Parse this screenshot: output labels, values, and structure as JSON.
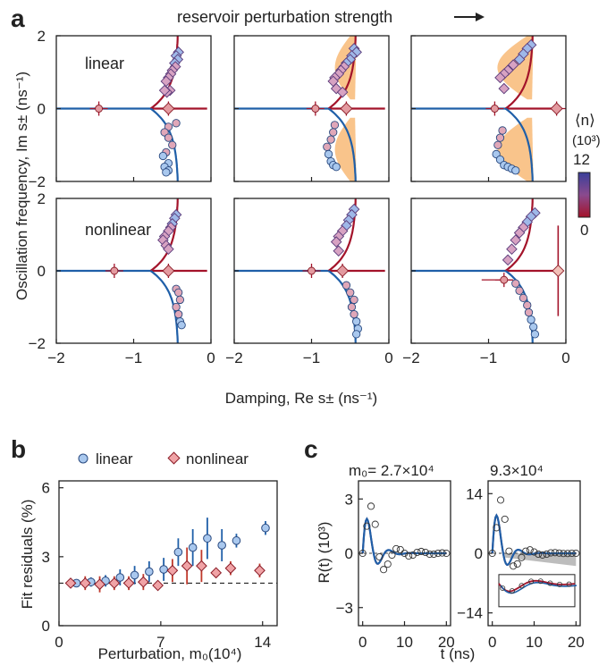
{
  "figure": {
    "panel_letters": [
      "a",
      "b",
      "c"
    ],
    "arrow_label": "reservoir perturbation strength",
    "row_labels": [
      "linear",
      "nonlinear"
    ],
    "colorbar": {
      "title": "⟨n⟩",
      "unit": "(10³)",
      "max_label": "12",
      "min_label": "0",
      "color_high": "#3a3f9a",
      "color_low": "#a3132a"
    },
    "colors": {
      "mode_plus": "#a3132a",
      "mode_minus": "#1f5fa8",
      "shade": "#f9c48b",
      "linear_marker": "#a9c8ee",
      "nonlinear_marker": "#f0a3a6",
      "gray_band": "#bdbdbd"
    }
  },
  "chart_data": [
    {
      "panel": "a",
      "type": "scatter",
      "xlabel": "Damping, Re s±  (ns⁻¹)",
      "ylabel": "Oscillation frequency, Im s±  (ns⁻¹)",
      "xlim": [
        -2,
        0
      ],
      "ylim": [
        -2,
        2
      ],
      "xticks": [
        "−2",
        "−1",
        "0"
      ],
      "yticks": [
        "2",
        "0",
        "−2"
      ],
      "subpanels": [
        {
          "row": "linear",
          "col": 1,
          "x_curve": [
            [
              -0.78,
              0
            ],
            [
              -0.7,
              0.45
            ],
            [
              -0.55,
              0.9
            ],
            [
              -0.45,
              1.4
            ],
            [
              -0.43,
              2.0
            ]
          ],
          "shade": false,
          "points_upper": [
            [
              -0.42,
              1.55
            ],
            [
              -0.45,
              1.45
            ],
            [
              -0.43,
              1.35
            ],
            [
              -0.47,
              1.25
            ],
            [
              -0.46,
              1.15
            ],
            [
              -0.5,
              1.05
            ],
            [
              -0.52,
              0.95
            ],
            [
              -0.55,
              0.85
            ],
            [
              -0.58,
              0.75
            ],
            [
              -0.53,
              0.5
            ],
            [
              -0.57,
              0.45
            ],
            [
              -0.6,
              0.5
            ]
          ],
          "points_lower": [
            [
              -0.45,
              -0.4
            ],
            [
              -0.55,
              -0.5
            ],
            [
              -0.6,
              -0.65
            ],
            [
              -0.55,
              -0.8
            ],
            [
              -0.5,
              -1.0
            ],
            [
              -0.58,
              -1.2
            ],
            [
              -0.62,
              -1.3
            ],
            [
              -0.55,
              -1.5
            ],
            [
              -0.6,
              -1.6
            ],
            [
              -0.55,
              -1.7
            ],
            [
              -0.58,
              -1.75
            ]
          ],
          "real_points": [
            [
              -1.45,
              0
            ],
            [
              -0.55,
              0
            ]
          ]
        },
        {
          "row": "linear",
          "col": 2,
          "shade": true,
          "points_upper": [
            [
              -0.45,
              1.65
            ],
            [
              -0.42,
              1.55
            ],
            [
              -0.48,
              1.45
            ],
            [
              -0.5,
              1.35
            ],
            [
              -0.55,
              1.25
            ],
            [
              -0.58,
              1.15
            ],
            [
              -0.62,
              1.05
            ],
            [
              -0.65,
              0.95
            ],
            [
              -0.7,
              0.85
            ],
            [
              -0.72,
              0.75
            ],
            [
              -0.68,
              0.55
            ],
            [
              -0.6,
              0.45
            ]
          ],
          "points_lower": [
            [
              -0.7,
              -0.45
            ],
            [
              -0.72,
              -0.65
            ],
            [
              -0.75,
              -0.85
            ],
            [
              -0.8,
              -1.05
            ],
            [
              -0.78,
              -1.25
            ],
            [
              -0.75,
              -1.45
            ],
            [
              -0.72,
              -1.55
            ],
            [
              -0.68,
              -1.6
            ]
          ],
          "real_points": [
            [
              -0.95,
              0
            ],
            [
              -0.55,
              0
            ]
          ]
        },
        {
          "row": "linear",
          "col": 3,
          "shade": true,
          "points_upper": [
            [
              -0.45,
              1.75
            ],
            [
              -0.5,
              1.65
            ],
            [
              -0.55,
              1.5
            ],
            [
              -0.6,
              1.35
            ],
            [
              -0.68,
              1.2
            ],
            [
              -0.75,
              1.05
            ],
            [
              -0.8,
              0.95
            ],
            [
              -0.85,
              0.85
            ],
            [
              -0.8,
              0.55
            ]
          ],
          "points_lower": [
            [
              -0.82,
              -0.6
            ],
            [
              -0.85,
              -0.8
            ],
            [
              -0.88,
              -1.0
            ],
            [
              -0.9,
              -1.25
            ],
            [
              -0.85,
              -1.4
            ],
            [
              -0.8,
              -1.55
            ],
            [
              -0.75,
              -1.6
            ],
            [
              -0.7,
              -1.65
            ],
            [
              -0.65,
              -1.7
            ]
          ],
          "real_points": [
            [
              -0.92,
              0
            ],
            [
              -0.12,
              0
            ]
          ]
        },
        {
          "row": "nonlinear",
          "col": 1,
          "shade": false,
          "points_upper": [
            [
              -0.45,
              1.55
            ],
            [
              -0.47,
              1.45
            ],
            [
              -0.5,
              1.3
            ],
            [
              -0.52,
              1.2
            ],
            [
              -0.55,
              1.1
            ],
            [
              -0.6,
              0.95
            ],
            [
              -0.62,
              0.85
            ],
            [
              -0.58,
              0.7
            ],
            [
              -0.55,
              0.6
            ]
          ],
          "points_lower": [
            [
              -0.45,
              -0.5
            ],
            [
              -0.42,
              -0.6
            ],
            [
              -0.4,
              -0.8
            ],
            [
              -0.45,
              -1.0
            ],
            [
              -0.42,
              -1.2
            ],
            [
              -0.4,
              -1.4
            ],
            [
              -0.38,
              -1.5
            ]
          ],
          "real_points": [
            [
              -1.25,
              0
            ],
            [
              -0.55,
              0
            ]
          ]
        },
        {
          "row": "nonlinear",
          "col": 2,
          "shade": false,
          "points_upper": [
            [
              -0.45,
              1.7
            ],
            [
              -0.48,
              1.55
            ],
            [
              -0.52,
              1.4
            ],
            [
              -0.55,
              1.25
            ],
            [
              -0.6,
              1.1
            ],
            [
              -0.65,
              0.95
            ],
            [
              -0.68,
              0.8
            ],
            [
              -0.65,
              0.55
            ]
          ],
          "points_lower": [
            [
              -0.55,
              -0.4
            ],
            [
              -0.5,
              -0.6
            ],
            [
              -0.45,
              -0.8
            ],
            [
              -0.48,
              -1.0
            ],
            [
              -0.45,
              -1.2
            ],
            [
              -0.42,
              -1.4
            ],
            [
              -0.4,
              -1.6
            ],
            [
              -0.42,
              -1.75
            ]
          ],
          "real_points": [
            [
              -1.0,
              0
            ],
            [
              -0.6,
              0
            ]
          ]
        },
        {
          "row": "nonlinear",
          "col": 3,
          "shade": false,
          "points_upper": [
            [
              -0.4,
              1.6
            ],
            [
              -0.45,
              1.5
            ],
            [
              -0.5,
              1.35
            ],
            [
              -0.55,
              1.2
            ],
            [
              -0.6,
              1.05
            ],
            [
              -0.65,
              0.85
            ],
            [
              -0.7,
              0.6
            ],
            [
              -0.75,
              0.3
            ]
          ],
          "points_lower": [
            [
              -0.65,
              -0.35
            ],
            [
              -0.6,
              -0.55
            ],
            [
              -0.55,
              -0.75
            ],
            [
              -0.5,
              -0.95
            ],
            [
              -0.48,
              -1.15
            ],
            [
              -0.45,
              -1.35
            ],
            [
              -0.42,
              -1.55
            ],
            [
              -0.4,
              -1.75
            ]
          ],
          "real_points": [
            [
              -0.8,
              -0.25
            ],
            [
              -0.1,
              0
            ]
          ]
        }
      ]
    },
    {
      "panel": "b",
      "type": "scatter",
      "xlabel": "Perturbation, m₀(10⁴)",
      "ylabel": "Fit residuals (%)",
      "xlim": [
        0,
        15
      ],
      "ylim": [
        0,
        6.3
      ],
      "xticks": [
        "0",
        "7",
        "14"
      ],
      "yticks": [
        "0",
        "3",
        "6"
      ],
      "reference_line": 1.85,
      "series": [
        {
          "name": "linear",
          "x": [
            1,
            2,
            3,
            4,
            5,
            6,
            7,
            8,
            9,
            10,
            11,
            12,
            14
          ],
          "y": [
            1.85,
            1.9,
            1.95,
            2.1,
            2.2,
            2.35,
            2.45,
            3.2,
            3.4,
            3.8,
            3.5,
            3.7,
            4.25
          ],
          "err": [
            0.15,
            0.2,
            0.25,
            0.35,
            0.4,
            0.45,
            0.5,
            0.6,
            0.8,
            0.9,
            0.7,
            0.3,
            0.3
          ]
        },
        {
          "name": "nonlinear",
          "x": [
            1,
            2,
            3,
            4,
            5,
            6,
            7,
            8,
            9,
            10,
            11,
            12,
            14
          ],
          "y": [
            1.85,
            1.85,
            1.8,
            1.85,
            1.85,
            1.9,
            1.75,
            2.4,
            2.6,
            2.6,
            2.3,
            2.5,
            2.4
          ],
          "err": [
            0.15,
            0.3,
            0.35,
            0.3,
            0.3,
            0.35,
            0.2,
            0.5,
            0.8,
            0.7,
            0.2,
            0.3,
            0.3
          ]
        }
      ]
    },
    {
      "panel": "c",
      "type": "line",
      "xlabel": "t (ns)",
      "ylabel": "R(t) (10³)",
      "subpanels": [
        {
          "title": "m₀= 2.7×10⁴",
          "xlim": [
            -1,
            21
          ],
          "ylim": [
            -4,
            4
          ],
          "xticks": [
            "0",
            "10",
            "20"
          ],
          "yticks": [
            "3",
            "0",
            "−3"
          ],
          "x": [
            0,
            1,
            2,
            3,
            4,
            5,
            6,
            7,
            8,
            9,
            10,
            11,
            12,
            13,
            14,
            15,
            16,
            17,
            18,
            19,
            20
          ],
          "y": [
            0,
            1.5,
            2.6,
            1.6,
            -0.2,
            -0.9,
            -0.6,
            -0.1,
            0.25,
            0.2,
            0,
            -0.15,
            -0.1,
            0.05,
            0.1,
            0.05,
            -0.05,
            -0.05,
            0,
            0.02,
            0
          ]
        },
        {
          "title": "9.3×10⁴",
          "xlim": [
            -1,
            21
          ],
          "ylim": [
            -17,
            17
          ],
          "xticks": [
            "0",
            "10",
            "20"
          ],
          "yticks": [
            "14",
            "0",
            "−14"
          ],
          "x": [
            0,
            1,
            2,
            3,
            4,
            5,
            6,
            7,
            8,
            9,
            10,
            11,
            12,
            13,
            14,
            15,
            16,
            17,
            18,
            19,
            20
          ],
          "y": [
            0,
            6,
            12.5,
            8,
            0.5,
            -3,
            -2.5,
            -1,
            0.5,
            0.8,
            0.3,
            -0.2,
            -0.4,
            -0.2,
            0.1,
            0.15,
            0.05,
            -0.05,
            -0.05,
            0,
            0
          ]
        }
      ]
    }
  ]
}
